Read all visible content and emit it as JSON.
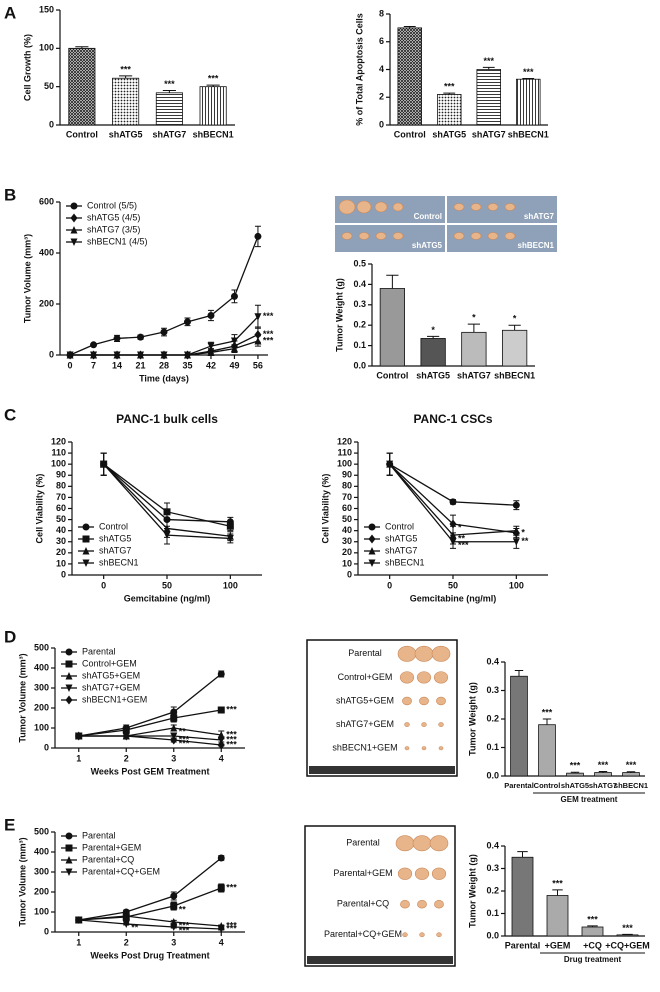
{
  "panel_labels": [
    "A",
    "B",
    "C",
    "D",
    "E"
  ],
  "photos": [
    [
      "Control",
      "shATG7",
      "shATG5",
      "shBECN1"
    ],
    [
      "Parental",
      "Control+GEM",
      "shATG5+GEM",
      "shATG7+GEM",
      "shBECN1+GEM"
    ],
    [
      "Parental",
      "Parental+GEM",
      "Parental+CQ",
      "Parental+CQ+GEM"
    ]
  ],
  "chart_data": [
    {
      "type": "bar",
      "ylabel": "Cell Growth (%)",
      "categories": [
        "Control",
        "shATG5",
        "shATG7",
        "shBECN1"
      ],
      "values": [
        100,
        61,
        42,
        50
      ],
      "errors": [
        2,
        3,
        3,
        2
      ],
      "annotations": [
        null,
        "***",
        "***",
        "***"
      ],
      "hatch": true,
      "color": "#222",
      "ylim": [
        0,
        150
      ],
      "yticks": [
        0,
        50,
        100,
        150
      ]
    },
    {
      "type": "bar",
      "ylabel": "% of Total Apoptosis Cells",
      "categories": [
        "Control",
        "shATG5",
        "shATG7",
        "shBECN1"
      ],
      "values": [
        7.0,
        2.2,
        4.0,
        3.3
      ],
      "errors": [
        0.1,
        0.1,
        0.15,
        0.05
      ],
      "annotations": [
        null,
        "***",
        "***",
        "***"
      ],
      "hatch": true,
      "color": "#222",
      "ylim": [
        0,
        8
      ],
      "yticks": [
        0,
        2,
        4,
        6,
        8
      ]
    },
    {
      "type": "line",
      "xlabel": "Time (days)",
      "ylabel": "Tumor Volume (mm³)",
      "legend": "upper left",
      "x": [
        0,
        7,
        14,
        21,
        28,
        35,
        42,
        49,
        56
      ],
      "xlim": [
        -3,
        59
      ],
      "xticks": [
        0,
        7,
        14,
        21,
        28,
        35,
        42,
        49,
        56
      ],
      "ylim": [
        0,
        600
      ],
      "yticks": [
        0,
        200,
        400,
        600
      ],
      "series": [
        {
          "name": "Control (5/5)",
          "marker": "circle",
          "values": [
            0,
            40,
            65,
            70,
            90,
            130,
            155,
            230,
            465
          ],
          "errors": [
            3,
            5,
            12,
            8,
            15,
            15,
            20,
            25,
            40
          ]
        },
        {
          "name": "shATG5 (4/5)",
          "marker": "diamond",
          "values": [
            0,
            0,
            0,
            0,
            0,
            0,
            15,
            35,
            80
          ],
          "errors": [
            0,
            0,
            0,
            0,
            0,
            0,
            10,
            20,
            30
          ],
          "annotations": [
            null,
            null,
            null,
            null,
            null,
            null,
            null,
            null,
            "***"
          ]
        },
        {
          "name": "shATG7 (3/5)",
          "marker": "triangle-up",
          "values": [
            0,
            0,
            0,
            0,
            0,
            0,
            10,
            25,
            55
          ],
          "errors": [
            0,
            0,
            0,
            0,
            0,
            0,
            10,
            15,
            20
          ],
          "annotations": [
            null,
            null,
            null,
            null,
            null,
            null,
            null,
            null,
            "***"
          ]
        },
        {
          "name": "shBECN1 (4/5)",
          "marker": "triangle-down",
          "values": [
            0,
            0,
            0,
            0,
            0,
            0,
            35,
            55,
            150
          ],
          "errors": [
            0,
            0,
            0,
            0,
            0,
            0,
            15,
            25,
            45
          ],
          "annotations": [
            null,
            null,
            null,
            null,
            null,
            null,
            null,
            null,
            "***"
          ]
        }
      ]
    },
    {
      "type": "bar",
      "ylabel": "Tumor Weight (g)",
      "categories": [
        "Control",
        "shATG5",
        "shATG7",
        "shBECN1"
      ],
      "values": [
        0.38,
        0.135,
        0.165,
        0.175
      ],
      "errors": [
        0.065,
        0.01,
        0.04,
        0.025
      ],
      "annotations": [
        null,
        "*",
        "*",
        "*"
      ],
      "colors": [
        "#999999",
        "#555555",
        "#bbbbbb",
        "#cccccc"
      ],
      "ylim": [
        0,
        0.5
      ],
      "yticks": [
        {
          "value": 0,
          "label": "0.0"
        },
        0.1,
        0.2,
        0.3,
        0.4,
        0.5
      ]
    },
    {
      "type": "line",
      "title": "PANC-1 bulk cells",
      "xlabel": "Gemcitabine (ng/ml)",
      "ylabel": "Cell Viability (%)",
      "legend": "lower left",
      "x": [
        0,
        50,
        100
      ],
      "xlim": [
        -25,
        125
      ],
      "xticks": [
        0,
        50,
        100
      ],
      "ylim": [
        0,
        120
      ],
      "yticks": [
        0,
        10,
        20,
        30,
        40,
        50,
        60,
        70,
        80,
        90,
        100,
        110,
        120
      ],
      "series": [
        {
          "name": "Control",
          "marker": "circle",
          "values": [
            100,
            50,
            48
          ],
          "errors": [
            10,
            8,
            4
          ]
        },
        {
          "name": "shATG5",
          "marker": "square",
          "values": [
            100,
            57,
            44
          ],
          "errors": [
            10,
            8,
            4
          ]
        },
        {
          "name": "shATG7",
          "marker": "triangle-up",
          "values": [
            100,
            42,
            35
          ],
          "errors": [
            10,
            8,
            4
          ]
        },
        {
          "name": "shBECN1",
          "marker": "triangle-down",
          "values": [
            100,
            36,
            33
          ],
          "errors": [
            10,
            8,
            4
          ]
        }
      ]
    },
    {
      "type": "line",
      "title": "PANC-1 CSCs",
      "xlabel": "Gemcitabine (ng/ml)",
      "ylabel": "Cell Viability (%)",
      "legend": "lower left",
      "x": [
        0,
        50,
        100
      ],
      "xlim": [
        -25,
        125
      ],
      "xticks": [
        0,
        50,
        100
      ],
      "ylim": [
        0,
        120
      ],
      "yticks": [
        0,
        10,
        20,
        30,
        40,
        50,
        60,
        70,
        80,
        90,
        100,
        110,
        120
      ],
      "series": [
        {
          "name": "Control",
          "marker": "circle",
          "values": [
            100,
            66,
            63
          ],
          "errors": [
            10,
            2,
            4
          ]
        },
        {
          "name": "shATG5",
          "marker": "diamond",
          "values": [
            100,
            46,
            38
          ],
          "errors": [
            10,
            8,
            4
          ],
          "annotations": [
            null,
            "*",
            "*"
          ]
        },
        {
          "name": "shATG7",
          "marker": "triangle-up",
          "values": [
            100,
            36,
            40
          ],
          "errors": [
            10,
            8,
            4
          ],
          "annotations": [
            null,
            "**",
            null
          ]
        },
        {
          "name": "shBECN1",
          "marker": "triangle-down",
          "values": [
            100,
            30,
            30
          ],
          "errors": [
            10,
            6,
            6
          ],
          "annotations": [
            null,
            "***",
            "**"
          ]
        }
      ]
    },
    {
      "type": "line",
      "xlabel": "Weeks Post GEM Treatment",
      "ylabel": "Tumor Volume (mm³)",
      "legend": "upper left",
      "x": [
        1,
        2,
        3,
        4
      ],
      "xlim": [
        0.5,
        4.5
      ],
      "xticks": [
        1,
        2,
        3,
        4
      ],
      "ylim": [
        0,
        500
      ],
      "yticks": [
        0,
        100,
        200,
        300,
        400,
        500
      ],
      "series": [
        {
          "name": "Parental",
          "marker": "circle",
          "values": [
            60,
            100,
            180,
            370
          ],
          "errors": [
            5,
            15,
            25,
            15
          ]
        },
        {
          "name": "Control+GEM",
          "marker": "square",
          "values": [
            60,
            90,
            150,
            190
          ],
          "errors": [
            5,
            10,
            20,
            5
          ],
          "annotations": [
            null,
            null,
            null,
            "***"
          ]
        },
        {
          "name": "shATG5+GEM",
          "marker": "triangle-up",
          "values": [
            60,
            60,
            100,
            65
          ],
          "errors": [
            5,
            10,
            15,
            20
          ],
          "annotations": [
            null,
            null,
            "**",
            "***"
          ]
        },
        {
          "name": "shATG7+GEM",
          "marker": "triangle-down",
          "values": [
            60,
            60,
            60,
            40
          ],
          "errors": [
            5,
            10,
            10,
            10
          ],
          "annotations": [
            null,
            null,
            "***",
            "***"
          ]
        },
        {
          "name": "shBECN1+GEM",
          "marker": "diamond",
          "values": [
            60,
            60,
            40,
            15
          ],
          "errors": [
            5,
            10,
            10,
            5
          ],
          "annotations": [
            null,
            null,
            "***",
            "***"
          ]
        }
      ]
    },
    {
      "type": "bar",
      "ylabel": "Tumor Weight (g)",
      "xlabel": "GEM treatment",
      "categories": [
        "Parental",
        "Control",
        "shATG5",
        "shATG7",
        "shBECN1"
      ],
      "values": [
        0.35,
        0.18,
        0.01,
        0.012,
        0.012
      ],
      "errors": [
        0.02,
        0.02,
        0.003,
        0.004,
        0.003
      ],
      "annotations": [
        null,
        "***",
        "***",
        "***",
        "***"
      ],
      "colors": [
        "#777777",
        "#aaaaaa",
        "#aaaaaa",
        "#aaaaaa",
        "#aaaaaa"
      ],
      "ylim": [
        0,
        0.4
      ],
      "yticks": [
        {
          "value": 0,
          "label": "0.0"
        },
        0.1,
        0.2,
        0.3,
        0.4
      ]
    },
    {
      "type": "line",
      "xlabel": "Weeks Post Drug Treatment",
      "ylabel": "Tumor Volume (mm³)",
      "legend": "upper left",
      "x": [
        1,
        2,
        3,
        4
      ],
      "xlim": [
        0.5,
        4.5
      ],
      "xticks": [
        1,
        2,
        3,
        4
      ],
      "ylim": [
        0,
        500
      ],
      "yticks": [
        0,
        100,
        200,
        300,
        400,
        500
      ],
      "series": [
        {
          "name": "Parental",
          "marker": "circle",
          "values": [
            60,
            100,
            180,
            370
          ],
          "errors": [
            5,
            10,
            20,
            12
          ]
        },
        {
          "name": "Parental+GEM",
          "marker": "square",
          "values": [
            60,
            75,
            130,
            220
          ],
          "errors": [
            5,
            8,
            20,
            20
          ],
          "annotations": [
            null,
            null,
            "**",
            "***"
          ]
        },
        {
          "name": "Parental+CQ",
          "marker": "triangle-up",
          "values": [
            60,
            80,
            50,
            30
          ],
          "errors": [
            5,
            5,
            8,
            5
          ],
          "annotations": [
            null,
            null,
            "***",
            "***"
          ]
        },
        {
          "name": "Parental+CQ+GEM",
          "marker": "triangle-down",
          "values": [
            60,
            40,
            25,
            15
          ],
          "errors": [
            5,
            5,
            5,
            5
          ],
          "annotations": [
            null,
            "**",
            "***",
            "***"
          ]
        }
      ]
    },
    {
      "type": "bar",
      "ylabel": "Tumor Weight (g)",
      "xlabel": "Drug treatment",
      "categories": [
        "Parental",
        "+GEM",
        "+CQ",
        "+CQ+GEM"
      ],
      "values": [
        0.35,
        0.18,
        0.04,
        0.005
      ],
      "errors": [
        0.025,
        0.025,
        0.005,
        0.002
      ],
      "annotations": [
        null,
        "***",
        "***",
        "***"
      ],
      "colors": [
        "#777777",
        "#aaaaaa",
        "#aaaaaa",
        "#aaaaaa"
      ],
      "ylim": [
        0,
        0.4
      ],
      "yticks": [
        {
          "value": 0,
          "label": "0.0"
        },
        0.1,
        0.2,
        0.3,
        0.4
      ]
    }
  ]
}
